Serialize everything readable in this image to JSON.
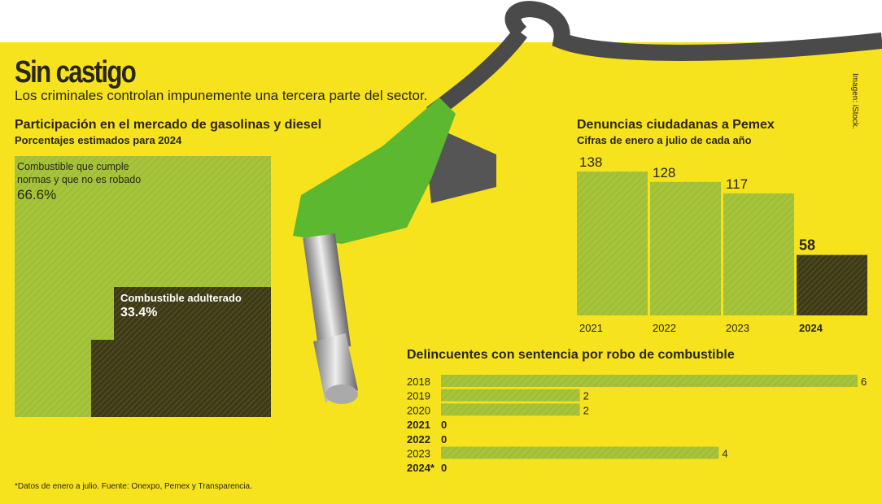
{
  "header": {
    "title": "Sin castigo",
    "subtitle": "Los criminales controlan impunemente una tercera parte del sector."
  },
  "credit": "Imagen: iStock.",
  "footnote": "*Datos de enero a julio. Fuente: Onexpo, Pemex y Transparencia.",
  "colors": {
    "background": "#f6e31e",
    "green": "#a6c43a",
    "dark": "#3d3a18"
  },
  "chart_data": [
    {
      "type": "area",
      "title": "Participación en el mercado de gasolinas y diesel",
      "subtitle": "Porcentajes estimados para 2024",
      "categories": [
        "Combustible que cumple normas y que no es robado",
        "Combustible adulterado"
      ],
      "values": [
        66.6,
        33.4
      ],
      "value_labels": [
        "66.6%",
        "33.4%"
      ],
      "label_lines": [
        [
          "Combustible que cumple",
          "normas y que no es robado"
        ],
        [
          "Combustible adulterado"
        ]
      ]
    },
    {
      "type": "bar",
      "title": "Denuncias ciudadanas a Pemex",
      "subtitle": "Cifras de enero a julio de cada año",
      "categories": [
        "2021",
        "2022",
        "2023",
        "2024"
      ],
      "values": [
        138,
        128,
        117,
        58
      ],
      "ylim": [
        0,
        138
      ]
    },
    {
      "type": "bar",
      "orientation": "horizontal",
      "title": "Delincuentes con sentencia por robo de combustible",
      "categories": [
        "2018",
        "2019",
        "2020",
        "2021",
        "2022",
        "2023",
        "2024*"
      ],
      "values": [
        6,
        2,
        2,
        0,
        0,
        4,
        0
      ],
      "xlim": [
        0,
        6
      ]
    }
  ]
}
